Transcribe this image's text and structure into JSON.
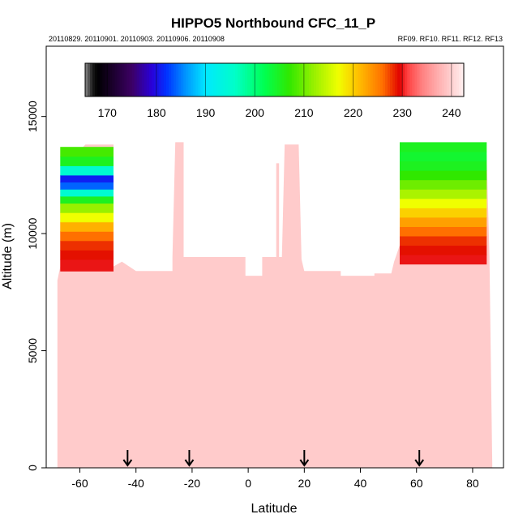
{
  "chart_data": {
    "type": "heatmap",
    "title": "HIPPO5 Northbound CFC_11_P",
    "subtitle_left": "20110829. 20110901. 20110903. 20110906. 20110908",
    "subtitle_right": "RF09. RF10. RF11. RF12. RF13",
    "xlabel": "Latitude",
    "ylabel": "Altitude (m)",
    "xlim": [
      -72,
      91
    ],
    "ylim": [
      0,
      18000
    ],
    "x_ticks": [
      -60,
      -40,
      -20,
      0,
      20,
      40,
      60,
      80
    ],
    "x_tick_labels": [
      "-60",
      "-40",
      "-20",
      "0",
      "20",
      "40",
      "60",
      "80"
    ],
    "y_ticks": [
      0,
      5000,
      10000,
      15000
    ],
    "y_tick_labels": [
      "0",
      "5000",
      "10000",
      "15000"
    ],
    "colorbar": {
      "range": [
        165.5,
        242.5
      ],
      "ticks": [
        170,
        180,
        190,
        200,
        210,
        220,
        230,
        240
      ],
      "tick_labels": [
        "170",
        "180",
        "190",
        "200",
        "210",
        "220",
        "230",
        "240"
      ],
      "palette": [
        {
          "v": 165.5,
          "c": "#8a8a8a"
        },
        {
          "v": 167,
          "c": "#1a1a1a"
        },
        {
          "v": 168,
          "c": "#000000"
        },
        {
          "v": 175,
          "c": "#3c0064"
        },
        {
          "v": 179,
          "c": "#2a00d8"
        },
        {
          "v": 182,
          "c": "#0030ff"
        },
        {
          "v": 186,
          "c": "#0096ff"
        },
        {
          "v": 190,
          "c": "#00e8ff"
        },
        {
          "v": 196,
          "c": "#00ffc8"
        },
        {
          "v": 202,
          "c": "#00ff50"
        },
        {
          "v": 207,
          "c": "#30e800"
        },
        {
          "v": 212,
          "c": "#98f000"
        },
        {
          "v": 217,
          "c": "#f0ff00"
        },
        {
          "v": 221,
          "c": "#ffc000"
        },
        {
          "v": 226,
          "c": "#ff7000"
        },
        {
          "v": 229.5,
          "c": "#e00000"
        },
        {
          "v": 231,
          "c": "#ff4040"
        },
        {
          "v": 234,
          "c": "#ff8080"
        },
        {
          "v": 238,
          "c": "#ffb8b8"
        },
        {
          "v": 242.5,
          "c": "#fff0f0"
        }
      ]
    },
    "flight_markers_latitude": [
      -43,
      -21,
      20,
      61
    ],
    "series_note": "",
    "regions": {
      "background_value": 239.5,
      "southern_stratosphere": {
        "lat": [
          -67,
          -48
        ],
        "alt_rows": [
          {
            "alt": 8400,
            "v": 230
          },
          {
            "alt": 8900,
            "v": 229
          },
          {
            "alt": 9300,
            "v": 228
          },
          {
            "alt": 9700,
            "v": 226
          },
          {
            "alt": 10100,
            "v": 222
          },
          {
            "alt": 10500,
            "v": 217
          },
          {
            "alt": 10900,
            "v": 212
          },
          {
            "alt": 11300,
            "v": 205
          },
          {
            "alt": 11600,
            "v": 195
          },
          {
            "alt": 11900,
            "v": 184
          },
          {
            "alt": 12200,
            "v": 181
          },
          {
            "alt": 12500,
            "v": 195
          },
          {
            "alt": 12900,
            "v": 205
          },
          {
            "alt": 13300,
            "v": 208
          }
        ]
      },
      "northern_stratosphere": {
        "lat": [
          54,
          85
        ],
        "alt_rows": [
          {
            "alt": 8700,
            "v": 230
          },
          {
            "alt": 9100,
            "v": 229
          },
          {
            "alt": 9500,
            "v": 228
          },
          {
            "alt": 9900,
            "v": 226
          },
          {
            "alt": 10300,
            "v": 223
          },
          {
            "alt": 10700,
            "v": 220
          },
          {
            "alt": 11100,
            "v": 217
          },
          {
            "alt": 11500,
            "v": 213
          },
          {
            "alt": 11900,
            "v": 210
          },
          {
            "alt": 12300,
            "v": 207
          },
          {
            "alt": 12700,
            "v": 205
          },
          {
            "alt": 13100,
            "v": 204
          },
          {
            "alt": 13500,
            "v": 205
          }
        ]
      },
      "tropospheric_envelope": [
        [
          -68,
          0
        ],
        [
          -68,
          8000
        ],
        [
          -67,
          8600
        ],
        [
          -67,
          12200
        ],
        [
          -63,
          13200
        ],
        [
          -58,
          13800
        ],
        [
          -48,
          13800
        ],
        [
          -48,
          8600
        ],
        [
          -45,
          8800
        ],
        [
          -40,
          8400
        ],
        [
          -27,
          8400
        ],
        [
          -27,
          9000
        ],
        [
          -26,
          13900
        ],
        [
          -23,
          13900
        ],
        [
          -23,
          9000
        ],
        [
          -1,
          9000
        ],
        [
          -1,
          8200
        ],
        [
          5,
          8200
        ],
        [
          5,
          9000
        ],
        [
          10,
          9000
        ],
        [
          10,
          13000
        ],
        [
          11,
          13000
        ],
        [
          11,
          9000
        ],
        [
          12,
          9000
        ],
        [
          13,
          13800
        ],
        [
          18,
          13800
        ],
        [
          19,
          8900
        ],
        [
          20,
          8400
        ],
        [
          33,
          8400
        ],
        [
          33,
          8200
        ],
        [
          45,
          8200
        ],
        [
          45,
          8300
        ],
        [
          51,
          8300
        ],
        [
          52,
          8800
        ],
        [
          54,
          9500
        ],
        [
          54,
          13500
        ],
        [
          56,
          13600
        ],
        [
          85,
          13400
        ],
        [
          86,
          9000
        ],
        [
          87,
          0
        ]
      ]
    }
  }
}
